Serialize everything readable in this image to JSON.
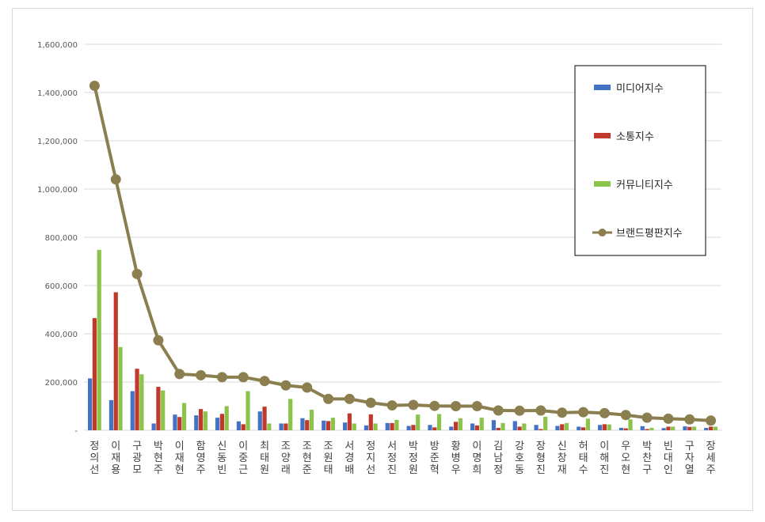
{
  "chart_data": {
    "type": "bar",
    "title": "",
    "xlabel": "",
    "ylabel": "",
    "ylim": [
      0,
      1600000
    ],
    "yticks": [
      0,
      200000,
      400000,
      600000,
      800000,
      1000000,
      1200000,
      1400000,
      1600000
    ],
    "ytick_labels": [
      "-",
      "200,000",
      "400,000",
      "600,000",
      "800,000",
      "1,000,000",
      "1,200,000",
      "1,400,000",
      "1,600,000"
    ],
    "grid": true,
    "legend_position": "right",
    "categories": [
      "정의선",
      "이재용",
      "구광모",
      "박현주",
      "이재현",
      "함영주",
      "신동빈",
      "이중근",
      "최태원",
      "조양래",
      "조현준",
      "조원태",
      "서경배",
      "정지선",
      "서정진",
      "박정원",
      "방준혁",
      "황병우",
      "이명희",
      "김남정",
      "강호동",
      "장형진",
      "신창재",
      "허태수",
      "이해진",
      "우오현",
      "박찬구",
      "빈대인",
      "구자열",
      "장세주"
    ],
    "series": [
      {
        "name": "미디어지수",
        "type": "bar",
        "color": "#4472c4",
        "values": [
          215000,
          125000,
          162000,
          28000,
          65000,
          62000,
          52000,
          37000,
          78000,
          28000,
          50000,
          40000,
          32000,
          20000,
          30000,
          18000,
          22000,
          15000,
          28000,
          42000,
          38000,
          22000,
          18000,
          15000,
          22000,
          10000,
          17000,
          9000,
          16000,
          10000
        ]
      },
      {
        "name": "소통지수",
        "type": "bar",
        "color": "#c0392b",
        "values": [
          465000,
          572000,
          255000,
          180000,
          55000,
          88000,
          68000,
          25000,
          98000,
          28000,
          42000,
          38000,
          70000,
          66000,
          30000,
          22000,
          12000,
          35000,
          20000,
          10000,
          15000,
          5000,
          25000,
          12000,
          25000,
          8000,
          5000,
          15000,
          14000,
          15000
        ]
      },
      {
        "name": "커뮤니티지수",
        "type": "bar",
        "color": "#8cc34a",
        "values": [
          748000,
          345000,
          232000,
          165000,
          113000,
          78000,
          100000,
          162000,
          28000,
          130000,
          85000,
          52000,
          28000,
          28000,
          43000,
          65000,
          67000,
          50000,
          52000,
          30000,
          28000,
          56000,
          30000,
          48000,
          24000,
          45000,
          10000,
          15000,
          15000,
          15000
        ]
      },
      {
        "name": "브랜드평판지수",
        "type": "line",
        "color": "#8c7f4f",
        "values": [
          1428000,
          1040000,
          648000,
          373000,
          233000,
          228000,
          220000,
          220000,
          204000,
          186000,
          177000,
          130000,
          130000,
          114000,
          103000,
          105000,
          101000,
          100000,
          100000,
          82000,
          81000,
          82000,
          73000,
          75000,
          71000,
          63000,
          52000,
          48000,
          45000,
          40000
        ]
      }
    ]
  }
}
